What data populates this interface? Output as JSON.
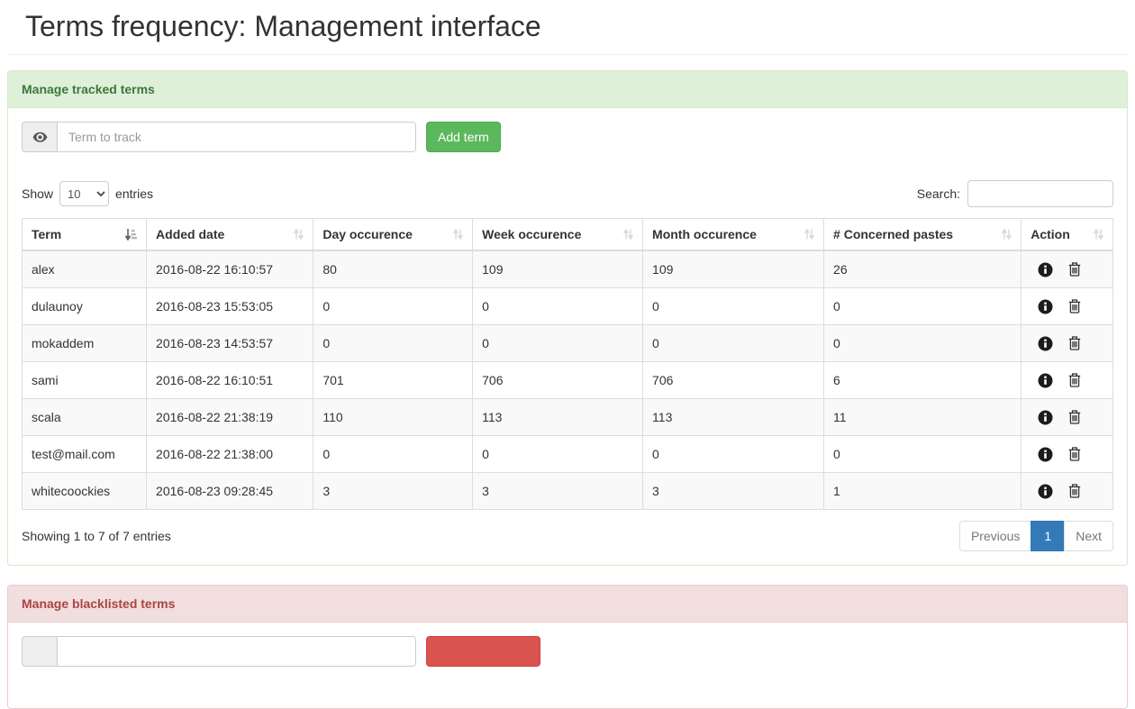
{
  "page": {
    "title": "Terms frequency: Management interface"
  },
  "tracked_panel": {
    "title": "Manage tracked terms",
    "term_input": {
      "placeholder": "Term to track",
      "value": "",
      "addon_icon": "eye-icon"
    },
    "add_button_label": "Add term",
    "length_control": {
      "show_label": "Show",
      "selected_value": "10",
      "entries_label": "entries"
    },
    "search": {
      "label": "Search:",
      "value": ""
    },
    "table": {
      "columns": [
        {
          "label": "Term",
          "sort": "asc",
          "width": "11.4%"
        },
        {
          "label": "Added date",
          "sort": "none",
          "width": "15.3%"
        },
        {
          "label": "Day occurence",
          "sort": "none",
          "width": "14.6%"
        },
        {
          "label": "Week occurence",
          "sort": "none",
          "width": "15.6%"
        },
        {
          "label": "Month occurence",
          "sort": "none",
          "width": "16.6%"
        },
        {
          "label": "# Concerned pastes",
          "sort": "none",
          "width": "18.1%"
        },
        {
          "label": "Action",
          "sort": "none",
          "width": "8.4%"
        }
      ],
      "action_icons": [
        "info-icon",
        "trash-icon"
      ],
      "rows": [
        {
          "term": "alex",
          "added_date": "2016-08-22 16:10:57",
          "day": "80",
          "week": "109",
          "month": "109",
          "pastes": "26"
        },
        {
          "term": "dulaunoy",
          "added_date": "2016-08-23 15:53:05",
          "day": "0",
          "week": "0",
          "month": "0",
          "pastes": "0"
        },
        {
          "term": "mokaddem",
          "added_date": "2016-08-23 14:53:57",
          "day": "0",
          "week": "0",
          "month": "0",
          "pastes": "0"
        },
        {
          "term": "sami",
          "added_date": "2016-08-22 16:10:51",
          "day": "701",
          "week": "706",
          "month": "706",
          "pastes": "6"
        },
        {
          "term": "scala",
          "added_date": "2016-08-22 21:38:19",
          "day": "110",
          "week": "113",
          "month": "113",
          "pastes": "11"
        },
        {
          "term": "test@mail.com",
          "added_date": "2016-08-22 21:38:00",
          "day": "0",
          "week": "0",
          "month": "0",
          "pastes": "0"
        },
        {
          "term": "whitecoockies",
          "added_date": "2016-08-23 09:28:45",
          "day": "3",
          "week": "3",
          "month": "3",
          "pastes": "1"
        }
      ]
    },
    "info_text": "Showing 1 to 7 of 7 entries",
    "pagination": {
      "previous_label": "Previous",
      "current_page": "1",
      "next_label": "Next"
    }
  },
  "blacklist_panel": {
    "title": "Manage blacklisted terms",
    "term_input": {
      "value": ""
    }
  },
  "colors": {
    "success_header_bg": "#dff0d8",
    "success_header_text": "#3c763d",
    "success_border": "#d6e9c6",
    "danger_header_bg": "#f2dede",
    "danger_header_text": "#a94442",
    "danger_border": "#ebccd1",
    "add_button": "#5cb85c",
    "danger_button": "#d9534f",
    "pagination_active": "#337ab7",
    "table_border": "#ddd",
    "stripe_row": "#f9f9f9"
  }
}
